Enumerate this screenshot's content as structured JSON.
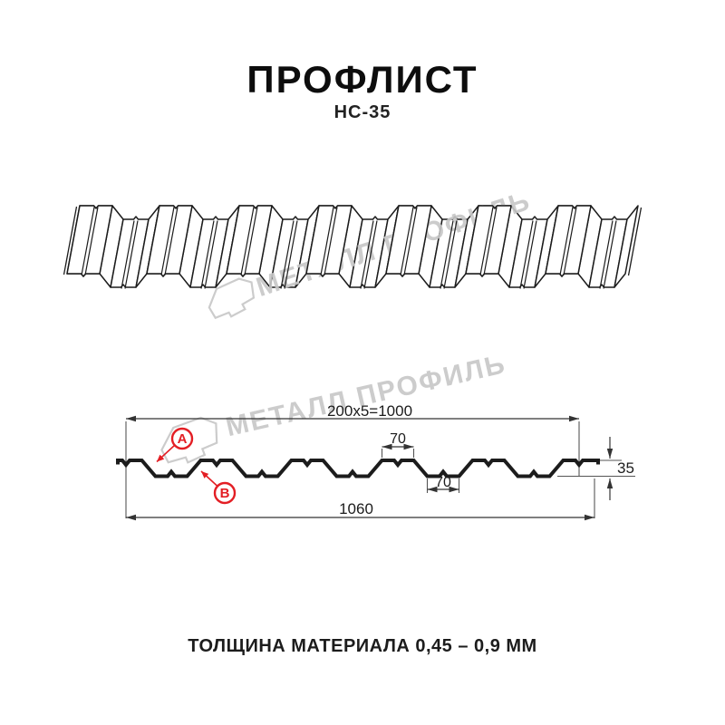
{
  "page": {
    "title": "ПРОФЛИСТ",
    "subtitle": "НС-35",
    "footer": "ТОЛЩИНА МАТЕРИАЛА 0,45 – 0,9 ММ"
  },
  "watermark": {
    "brand": "МЕТАЛЛ ПРОФИЛЬ"
  },
  "diagram": {
    "type": "profiled-sheet-technical-drawing",
    "sheet_name": "НС-35",
    "dims": {
      "coverage": "200x5=1000",
      "top_flange": "70",
      "bottom_flange": "70",
      "height": "35",
      "overall": "1060"
    },
    "callouts": {
      "a": "A",
      "b": "B"
    },
    "colors": {
      "accent_red": "#e31e24",
      "line": "#1c1c1c",
      "dim_line": "#333333",
      "watermark": "#c7c7c7"
    }
  }
}
